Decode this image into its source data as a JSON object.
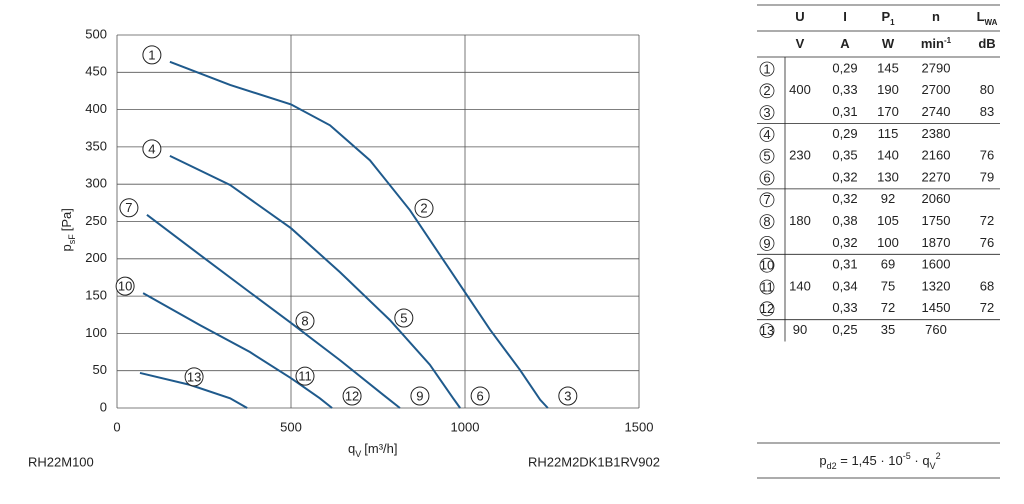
{
  "chart_data": {
    "type": "line",
    "x_label": {
      "main": "q",
      "sub": "V",
      "unit": "[m³/h]"
    },
    "y_label": {
      "main": "p",
      "sub": "sF",
      "unit": "[Pa]"
    },
    "left_note": "RH22M100",
    "right_note": "RH22M2DK1B1RV902",
    "xlim": [
      0,
      1500
    ],
    "ylim": [
      0,
      500
    ],
    "xticks": [
      0,
      500,
      1000,
      1500
    ],
    "yticks": [
      0,
      50,
      100,
      150,
      200,
      250,
      300,
      350,
      400,
      450,
      500
    ],
    "grid": true,
    "color": "#1f5a8c",
    "series": [
      {
        "labels": [
          "1",
          "2",
          "3"
        ],
        "x": [
          152,
          325,
          500,
          612,
          727,
          842,
          957,
          1072,
          1158,
          1216,
          1238
        ],
        "values": [
          464,
          433,
          407,
          379,
          332,
          265,
          185,
          105,
          51,
          11,
          0
        ]
      },
      {
        "labels": [
          "4",
          "5",
          "6"
        ],
        "x": [
          152,
          325,
          500,
          641,
          784,
          899,
          966,
          986
        ],
        "values": [
          338,
          299,
          241,
          182,
          118,
          58,
          13,
          0
        ]
      },
      {
        "labels": [
          "7",
          "8",
          "9"
        ],
        "x": [
          86,
          239,
          382,
          500,
          641,
          756,
          813
        ],
        "values": [
          259,
          205,
          155,
          114,
          64,
          21,
          0
        ]
      },
      {
        "labels": [
          "10",
          "11",
          "12"
        ],
        "x": [
          75,
          239,
          382,
          500,
          583,
          618
        ],
        "values": [
          154,
          111,
          75,
          40,
          13,
          0
        ]
      },
      {
        "labels": [
          "13"
        ],
        "x": [
          66,
          210,
          325,
          374
        ],
        "values": [
          47,
          31,
          13,
          0
        ]
      }
    ]
  },
  "table": {
    "headers": [
      {
        "text": "U"
      },
      {
        "text": "I"
      },
      {
        "text": "P",
        "sub": "1"
      },
      {
        "text": "n"
      },
      {
        "text": "L",
        "sub": "WA"
      }
    ],
    "units": [
      {
        "text": "V"
      },
      {
        "text": "A"
      },
      {
        "text": "W"
      },
      {
        "text": "min",
        "sup": "-1"
      },
      {
        "text": "dB"
      }
    ],
    "groups": [
      {
        "U": "400",
        "rows": [
          {
            "id": "1",
            "I": "0,29",
            "P": "145",
            "n": "2790",
            "LWA": null
          },
          {
            "id": "2",
            "I": "0,33",
            "P": "190",
            "n": "2700",
            "LWA": "80"
          },
          {
            "id": "3",
            "I": "0,31",
            "P": "170",
            "n": "2740",
            "LWA": "83"
          }
        ]
      },
      {
        "U": "230",
        "rows": [
          {
            "id": "4",
            "I": "0,29",
            "P": "115",
            "n": "2380",
            "LWA": null
          },
          {
            "id": "5",
            "I": "0,35",
            "P": "140",
            "n": "2160",
            "LWA": "76"
          },
          {
            "id": "6",
            "I": "0,32",
            "P": "130",
            "n": "2270",
            "LWA": "79"
          }
        ]
      },
      {
        "U": "180",
        "rows": [
          {
            "id": "7",
            "I": "0,32",
            "P": "92",
            "n": "2060",
            "LWA": null
          },
          {
            "id": "8",
            "I": "0,38",
            "P": "105",
            "n": "1750",
            "LWA": "72"
          },
          {
            "id": "9",
            "I": "0,32",
            "P": "100",
            "n": "1870",
            "LWA": "76"
          }
        ]
      },
      {
        "U": "140",
        "rows": [
          {
            "id": "10",
            "I": "0,31",
            "P": "69",
            "n": "1600",
            "LWA": null
          },
          {
            "id": "11",
            "I": "0,34",
            "P": "75",
            "n": "1320",
            "LWA": "68"
          },
          {
            "id": "12",
            "I": "0,33",
            "P": "72",
            "n": "1450",
            "LWA": "72"
          }
        ]
      },
      {
        "U": "90",
        "rows": [
          {
            "id": "13",
            "I": "0,25",
            "P": "35",
            "n": "760",
            "LWA": null
          }
        ]
      }
    ]
  },
  "formula": [
    {
      "text": "p",
      "style": "base"
    },
    {
      "text": "d2",
      "style": "sub"
    },
    {
      "text": " = 1,45 · 10",
      "style": "base"
    },
    {
      "text": "-5",
      "style": "sup"
    },
    {
      "text": " · q",
      "style": "base"
    },
    {
      "text": "V",
      "style": "sub"
    },
    {
      "text": "2",
      "style": "sup"
    }
  ]
}
